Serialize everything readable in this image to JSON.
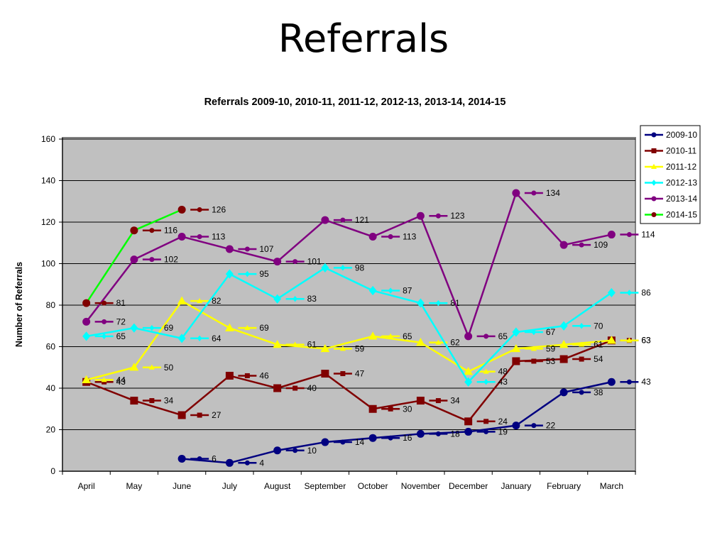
{
  "slide": {
    "title": "Referrals"
  },
  "chart_data": {
    "type": "line",
    "title": "Referrals 2009-10, 2010-11, 2011-12, 2012-13, 2013-14, 2014-15",
    "xlabel": "",
    "ylabel": "Number of Referrals",
    "ylim": [
      0,
      160
    ],
    "yticks": [
      0,
      20,
      40,
      60,
      80,
      100,
      120,
      140,
      160
    ],
    "grid": true,
    "legend_position": "top-right",
    "categories": [
      "April",
      "May",
      "June",
      "July",
      "August",
      "September",
      "October",
      "November",
      "December",
      "January",
      "February",
      "March"
    ],
    "series": [
      {
        "name": "2009-10",
        "color": "#000080",
        "marker": "circle",
        "values": [
          null,
          null,
          6,
          4,
          10,
          14,
          16,
          18,
          19,
          22,
          38,
          43
        ],
        "labels": [
          "",
          "",
          "6",
          "4",
          "10",
          "14",
          "16",
          "18",
          "19",
          "22",
          "38",
          "43"
        ]
      },
      {
        "name": "2010-11",
        "color": "#800000",
        "marker": "square",
        "values": [
          43,
          34,
          27,
          46,
          40,
          47,
          30,
          34,
          24,
          53,
          54,
          63
        ],
        "labels": [
          "43",
          "34",
          "27",
          "46",
          "40",
          "47",
          "30",
          "34",
          "24",
          "53",
          "54",
          "63"
        ]
      },
      {
        "name": "2011-12",
        "color": "#ffff00",
        "marker": "triangle",
        "values": [
          44,
          50,
          82,
          69,
          61,
          59,
          65,
          62,
          48,
          59,
          61,
          63
        ],
        "labels": [
          "44",
          "50",
          "82",
          "69",
          "61",
          "59",
          "65",
          "62",
          "48",
          "59",
          "61",
          "63"
        ]
      },
      {
        "name": "2012-13",
        "color": "#00ffff",
        "marker": "diamond",
        "values": [
          65,
          69,
          64,
          95,
          83,
          98,
          87,
          81,
          43,
          67,
          70,
          86
        ],
        "labels": [
          "65",
          "69",
          "64",
          "95",
          "83",
          "98",
          "87",
          "81",
          "43",
          "67",
          "70",
          "86"
        ]
      },
      {
        "name": "2013-14",
        "color": "#800080",
        "marker": "circle",
        "values": [
          72,
          102,
          113,
          107,
          101,
          121,
          113,
          123,
          65,
          134,
          109,
          114
        ],
        "labels": [
          "72",
          "102",
          "113",
          "107",
          "101",
          "121",
          "113",
          "123",
          "65",
          "134",
          "109",
          "114"
        ]
      },
      {
        "name": "2014-15",
        "color": "#00ff00",
        "markerColor": "#800000",
        "marker": "circle",
        "values": [
          81,
          116,
          126,
          null,
          null,
          null,
          null,
          null,
          null,
          null,
          null,
          null
        ],
        "labels": [
          "81",
          "116",
          "126",
          "",
          "",
          "",
          "",
          "",
          "",
          "",
          "",
          ""
        ]
      }
    ]
  }
}
